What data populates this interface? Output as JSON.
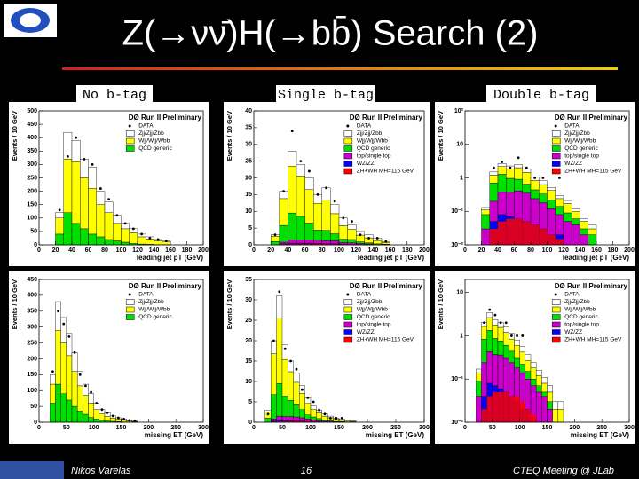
{
  "header": {
    "title": "Z(→νν̄)H(→bb̄) Search (2)"
  },
  "columns": [
    "No b-tag",
    "Single b-tag",
    "Double b-tag"
  ],
  "footer": {
    "author": "Nikos Varelas",
    "page": "16",
    "event": "CTEQ Meeting @ JLab"
  },
  "chart_data": [
    {
      "type": "histogram",
      "title": "DØ Run II Preliminary",
      "xlabel": "leading jet pT (GeV)",
      "ylabel": "Events / 10 GeV",
      "xlim": [
        0,
        200
      ],
      "xticks": [
        0,
        20,
        40,
        60,
        80,
        100,
        120,
        140,
        160,
        180,
        200
      ],
      "ylim": [
        0,
        500
      ],
      "yticks": [
        0,
        50,
        100,
        150,
        200,
        250,
        300,
        350,
        400,
        450,
        500
      ],
      "bins": [
        20,
        30,
        40,
        50,
        60,
        70,
        80,
        90,
        100,
        110,
        120,
        130,
        140,
        150,
        160
      ],
      "data": {
        "name": "DATA",
        "values": [
          130,
          330,
          400,
          320,
          300,
          210,
          170,
          110,
          80,
          60,
          40,
          25,
          20,
          15
        ]
      },
      "series": [
        {
          "name": "Zjj/Zjj/Zbb",
          "color": "#ffffff",
          "values": [
            20,
            100,
            80,
            70,
            80,
            50,
            40,
            30,
            20,
            15,
            10,
            8,
            5,
            4
          ]
        },
        {
          "name": "Wjj/Wjj/Wbb",
          "color": "#ffff00",
          "values": [
            60,
            200,
            230,
            190,
            170,
            120,
            100,
            65,
            50,
            40,
            27,
            20,
            14,
            10
          ]
        },
        {
          "name": "QCD generic",
          "color": "#00e000",
          "values": [
            40,
            120,
            80,
            60,
            40,
            30,
            20,
            15,
            10,
            5,
            3,
            2,
            1,
            1
          ]
        }
      ]
    },
    {
      "type": "histogram",
      "title": "DØ Run II Preliminary",
      "xlabel": "leading jet pT (GeV)",
      "ylabel": "Events / 10 GeV",
      "xlim": [
        0,
        200
      ],
      "xticks": [
        0,
        20,
        40,
        60,
        80,
        100,
        120,
        140,
        160,
        180,
        200
      ],
      "ylim": [
        0,
        40
      ],
      "yticks": [
        0,
        5,
        10,
        15,
        20,
        25,
        30,
        35,
        40
      ],
      "bins": [
        20,
        30,
        40,
        50,
        60,
        70,
        80,
        90,
        100,
        110,
        120,
        130,
        140,
        150,
        160
      ],
      "data": {
        "name": "DATA",
        "values": [
          3,
          16,
          34,
          25,
          22,
          15,
          17,
          13,
          8,
          7,
          3,
          2,
          2,
          1
        ]
      },
      "series": [
        {
          "name": "Zjj/Zjj/Zbb",
          "color": "#ffffff",
          "values": [
            0.5,
            2.2,
            4.5,
            3.5,
            3.5,
            2.6,
            3.7,
            2.7,
            2.3,
            1.4,
            1.1,
            0.9,
            0.7,
            0.3
          ]
        },
        {
          "name": "Wjj/Wjj/Wbb",
          "color": "#ffff00",
          "values": [
            1.5,
            8,
            14,
            12,
            10,
            8,
            9,
            6,
            4,
            3,
            2,
            1.5,
            1,
            0.5
          ]
        },
        {
          "name": "QCD generic",
          "color": "#00e000",
          "values": [
            1,
            5,
            8,
            7,
            5,
            3,
            3,
            2,
            1,
            1,
            0.5,
            0.3,
            0.2,
            0.1
          ]
        },
        {
          "name": "top/single top",
          "color": "#cc00cc",
          "values": [
            0,
            0.5,
            1,
            1,
            1,
            1,
            1,
            1,
            0.5,
            0.5,
            0.3,
            0.2,
            0.1,
            0.1
          ]
        },
        {
          "name": "WZ/ZZ",
          "color": "#0000ff",
          "values": [
            0,
            0.3,
            0.5,
            0.5,
            0.5,
            0.4,
            0.3,
            0.3,
            0.2,
            0.1,
            0.1,
            0.1,
            0,
            0
          ]
        }
      ],
      "signal": {
        "name": "ZH+WH MH=115 GeV",
        "color": "#ff0000",
        "values": [
          0.05,
          0.2,
          0.3,
          0.3,
          0.3,
          0.3,
          0.25,
          0.2,
          0.15,
          0.1,
          0.08,
          0.05,
          0.03,
          0.02
        ]
      }
    },
    {
      "type": "histogram",
      "title": "DØ Run II Preliminary",
      "xlabel": "leading jet pT (GeV)",
      "ylabel": "Events / 10 GeV",
      "log": true,
      "xlim": [
        0,
        200
      ],
      "xticks": [
        0,
        20,
        40,
        60,
        80,
        100,
        120,
        140,
        160,
        180,
        200
      ],
      "ylim": [
        0.01,
        100
      ],
      "yticks": [
        {
          "value": 0.01,
          "label": "10⁻²"
        },
        {
          "value": 0.1,
          "label": "10⁻¹"
        },
        1,
        10,
        {
          "value": 100,
          "label": "10²"
        }
      ],
      "bins": [
        20,
        30,
        40,
        50,
        60,
        70,
        80,
        90,
        100,
        110,
        120,
        130,
        140,
        150,
        160
      ],
      "data": {
        "name": "DATA",
        "values": [
          null,
          2,
          3,
          2,
          4,
          2,
          1,
          1,
          null,
          1,
          null,
          null,
          null,
          null
        ]
      },
      "series": [
        {
          "name": "Zjj/Zjj/Zbb",
          "color": "#ffffff",
          "values": [
            0.02,
            0.3,
            0.5,
            0.4,
            0.5,
            0.4,
            0.2,
            0.2,
            0.1,
            0.06,
            0.04,
            0.02,
            0.01,
            0.01
          ]
        },
        {
          "name": "Wjj/Wjj/Wbb",
          "color": "#ffff00",
          "values": [
            0.03,
            0.5,
            0.9,
            0.9,
            1.1,
            0.8,
            0.4,
            0.3,
            0.2,
            0.1,
            0.08,
            0.04,
            0.02,
            0.01
          ]
        },
        {
          "name": "QCD generic",
          "color": "#00e000",
          "values": [
            0.05,
            0.5,
            0.9,
            0.6,
            0.5,
            0.3,
            0.2,
            0.15,
            0.1,
            0.06,
            0.04,
            0.02,
            0.01,
            0.01
          ]
        },
        {
          "name": "top/single top",
          "color": "#cc00cc",
          "values": [
            0.02,
            0.15,
            0.3,
            0.3,
            0.35,
            0.3,
            0.2,
            0.15,
            0.1,
            0.06,
            0.04,
            0.03,
            0.02,
            0.01
          ]
        },
        {
          "name": "WZ/ZZ",
          "color": "#0000ff",
          "values": [
            0.01,
            0.05,
            0.08,
            0.07,
            0.06,
            0.05,
            0.04,
            0.03,
            0.02,
            0.02,
            0.01,
            0.01,
            0,
            0
          ]
        }
      ],
      "signal": {
        "name": "ZH+WH MH=115 GeV",
        "color": "#ff0000",
        "values": [
          0.005,
          0.03,
          0.05,
          0.06,
          0.06,
          0.05,
          0.04,
          0.03,
          0.02,
          0.015,
          0.01,
          0.005,
          0.003,
          0.002
        ]
      }
    },
    {
      "type": "histogram",
      "title": "DØ Run II Preliminary",
      "xlabel": "missing ET (GeV)",
      "ylabel": "Events / 10 GeV",
      "xlim": [
        0,
        300
      ],
      "xticks": [
        0,
        50,
        100,
        150,
        200,
        250,
        300
      ],
      "ylim": [
        0,
        450
      ],
      "yticks": [
        0,
        50,
        100,
        150,
        200,
        250,
        300,
        350,
        400,
        450
      ],
      "bins": [
        20,
        30,
        40,
        50,
        60,
        70,
        80,
        90,
        100,
        110,
        120,
        130,
        140,
        150,
        160,
        170,
        180
      ],
      "data": {
        "name": "DATA",
        "values": [
          160,
          350,
          310,
          270,
          220,
          150,
          115,
          95,
          60,
          40,
          30,
          20,
          14,
          10,
          6,
          4
        ]
      },
      "series": [
        {
          "name": "Zjj/Zjj/Zbb",
          "color": "#ffffff",
          "values": [
            30,
            90,
            80,
            70,
            60,
            45,
            35,
            30,
            20,
            14,
            11,
            7,
            5,
            4,
            2,
            2
          ]
        },
        {
          "name": "Wjj/Wjj/Wbb",
          "color": "#ffff00",
          "values": [
            60,
            170,
            160,
            140,
            110,
            80,
            60,
            45,
            30,
            20,
            15,
            10,
            7,
            5,
            3,
            2
          ]
        },
        {
          "name": "QCD generic",
          "color": "#00e000",
          "values": [
            60,
            120,
            90,
            70,
            50,
            35,
            25,
            15,
            10,
            6,
            4,
            3,
            2,
            1,
            1,
            0
          ]
        }
      ]
    },
    {
      "type": "histogram",
      "title": "DØ Run II Preliminary",
      "xlabel": "missing ET (GeV)",
      "ylabel": "Events / 10 GeV",
      "xlim": [
        0,
        300
      ],
      "xticks": [
        0,
        50,
        100,
        150,
        200,
        250,
        300
      ],
      "ylim": [
        0,
        35
      ],
      "yticks": [
        0,
        5,
        10,
        15,
        20,
        25,
        30,
        35
      ],
      "bins": [
        20,
        30,
        40,
        50,
        60,
        70,
        80,
        90,
        100,
        110,
        120,
        130,
        140,
        150,
        160,
        170,
        180
      ],
      "data": {
        "name": "DATA",
        "values": [
          2,
          20,
          32,
          18,
          15,
          13,
          8,
          6,
          5,
          3,
          2,
          1,
          1,
          1,
          null,
          null
        ]
      },
      "series": [
        {
          "name": "Zjj/Zjj/Zbb",
          "color": "#ffffff",
          "values": [
            0.5,
            3.2,
            5.5,
            3.6,
            2.6,
            2.2,
            1.9,
            1.4,
            0.9,
            0.7,
            0.5,
            0.4,
            0.3,
            0.3,
            0.2,
            0.1
          ]
        },
        {
          "name": "Wjj/Wjj/Wbb",
          "color": "#ffff00",
          "values": [
            1.5,
            10,
            16,
            9,
            7,
            5.5,
            4,
            2.8,
            1.8,
            1.4,
            0.9,
            0.6,
            0.5,
            0.3,
            0.2,
            0.2
          ]
        },
        {
          "name": "QCD generic",
          "color": "#00e000",
          "values": [
            1,
            6,
            8,
            5,
            4,
            3,
            2,
            1,
            0.7,
            0.5,
            0.3,
            0.2,
            0.1,
            0.1,
            0,
            0
          ]
        },
        {
          "name": "top/single top",
          "color": "#cc00cc",
          "values": [
            0,
            0.5,
            1,
            1,
            1,
            1,
            0.8,
            0.6,
            0.4,
            0.3,
            0.2,
            0.2,
            0.1,
            0.1,
            0.1,
            0
          ]
        },
        {
          "name": "WZ/ZZ",
          "color": "#0000ff",
          "values": [
            0,
            0.3,
            0.5,
            0.4,
            0.4,
            0.3,
            0.3,
            0.2,
            0.2,
            0.1,
            0.1,
            0.1,
            0,
            0,
            0,
            0
          ]
        }
      ],
      "signal": {
        "name": "ZH+WH MH=115 GeV",
        "color": "#ff0000",
        "values": [
          0.02,
          0.1,
          0.2,
          0.25,
          0.25,
          0.25,
          0.2,
          0.2,
          0.15,
          0.1,
          0.08,
          0.06,
          0.04,
          0.03,
          0.02,
          0.01
        ]
      }
    },
    {
      "type": "histogram",
      "title": "DØ Run II Preliminary",
      "xlabel": "missing ET (GeV)",
      "ylabel": "Events / 10 GeV",
      "log": true,
      "xlim": [
        0,
        300
      ],
      "xticks": [
        0,
        50,
        100,
        150,
        200,
        250,
        300
      ],
      "ylim": [
        0.01,
        20
      ],
      "yticks": [
        {
          "value": 0.01,
          "label": "10⁻²"
        },
        {
          "value": 0.1,
          "label": "10⁻¹"
        },
        1,
        10
      ],
      "bins": [
        20,
        30,
        40,
        50,
        60,
        70,
        80,
        90,
        100,
        110,
        120,
        130,
        140,
        150,
        160,
        170,
        180
      ],
      "data": {
        "name": "DATA",
        "values": [
          null,
          2,
          4,
          3,
          2,
          2,
          1,
          1,
          1,
          null,
          null,
          null,
          null,
          null,
          null,
          null
        ]
      },
      "series": [
        {
          "name": "Zjj/Zjj/Zbb",
          "color": "#ffffff",
          "values": [
            0.03,
            0.4,
            0.8,
            0.6,
            0.5,
            0.4,
            0.3,
            0.2,
            0.15,
            0.1,
            0.06,
            0.04,
            0.03,
            0.02,
            0.01,
            0.01
          ]
        },
        {
          "name": "Wjj/Wjj/Wbb",
          "color": "#ffff00",
          "values": [
            0.05,
            0.8,
            1.3,
            0.9,
            0.8,
            0.6,
            0.4,
            0.3,
            0.2,
            0.12,
            0.08,
            0.05,
            0.03,
            0.02,
            0.01,
            0.01
          ]
        },
        {
          "name": "QCD generic",
          "color": "#00e000",
          "values": [
            0.05,
            0.6,
            0.9,
            0.5,
            0.4,
            0.3,
            0.2,
            0.12,
            0.08,
            0.05,
            0.03,
            0.02,
            0.01,
            0.01,
            0,
            0
          ]
        },
        {
          "name": "top/single top",
          "color": "#cc00cc",
          "values": [
            0.03,
            0.2,
            0.35,
            0.3,
            0.3,
            0.25,
            0.2,
            0.15,
            0.12,
            0.08,
            0.06,
            0.04,
            0.03,
            0.02,
            0.01,
            0.01
          ]
        },
        {
          "name": "WZ/ZZ",
          "color": "#0000ff",
          "values": [
            0.01,
            0.04,
            0.08,
            0.07,
            0.06,
            0.05,
            0.04,
            0.03,
            0.02,
            0.02,
            0.01,
            0.01,
            0.01,
            0,
            0,
            0
          ]
        }
      ],
      "signal": {
        "name": "ZH+WH MH=115 GeV",
        "color": "#ff0000",
        "values": [
          0.005,
          0.02,
          0.04,
          0.05,
          0.05,
          0.05,
          0.04,
          0.04,
          0.03,
          0.02,
          0.015,
          0.01,
          0.008,
          0.005,
          0.003,
          0.002
        ]
      }
    }
  ]
}
